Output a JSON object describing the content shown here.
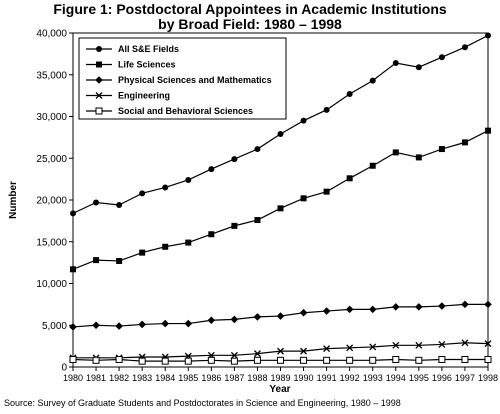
{
  "chart_data": {
    "type": "line",
    "title_line1": "Figure 1: Postdoctoral Appointees in Academic Institutions",
    "title_line2": "by Broad Field: 1980 – 1998",
    "xlabel": "Year",
    "ylabel": "Number",
    "ylim": [
      0,
      40000
    ],
    "yticks": [
      0,
      5000,
      10000,
      15000,
      20000,
      25000,
      30000,
      35000,
      40000
    ],
    "ytick_labels": [
      "0",
      "5,000",
      "10,000",
      "15,000",
      "20,000",
      "25,000",
      "30,000",
      "35,000",
      "40,000"
    ],
    "x": [
      "1980",
      "1981",
      "1982",
      "1983",
      "1984",
      "1985",
      "1986",
      "1987",
      "1988",
      "1989",
      "1990",
      "1991",
      "1992",
      "1993",
      "1994",
      "1995",
      "1996",
      "1997",
      "1998"
    ],
    "legend_position": "top-left",
    "grid": false,
    "series": [
      {
        "name": "All S&E Fields",
        "marker": "circle",
        "values": [
          18400,
          19700,
          19400,
          20800,
          21500,
          22400,
          23700,
          24900,
          26100,
          27900,
          29500,
          30800,
          32700,
          34300,
          36400,
          35900,
          37100,
          38300,
          39700
        ]
      },
      {
        "name": "Life Sciences",
        "marker": "square",
        "values": [
          11700,
          12800,
          12700,
          13700,
          14400,
          14900,
          15900,
          16900,
          17600,
          19000,
          20200,
          21000,
          22600,
          24100,
          25700,
          25100,
          26100,
          26900,
          28300
        ]
      },
      {
        "name": "Physical Sciences and Mathematics",
        "marker": "diamond",
        "values": [
          4800,
          5000,
          4900,
          5100,
          5200,
          5200,
          5600,
          5700,
          6000,
          6100,
          6500,
          6700,
          6900,
          6900,
          7200,
          7200,
          7300,
          7500,
          7500
        ]
      },
      {
        "name": "Engineering",
        "marker": "x",
        "values": [
          1100,
          1100,
          1100,
          1200,
          1200,
          1300,
          1400,
          1400,
          1600,
          1900,
          1900,
          2200,
          2300,
          2400,
          2600,
          2600,
          2700,
          2900,
          2800
        ]
      },
      {
        "name": "Social and Behavioral Sciences",
        "marker": "open-square",
        "values": [
          900,
          800,
          900,
          700,
          700,
          700,
          800,
          700,
          800,
          800,
          800,
          800,
          800,
          800,
          900,
          800,
          900,
          900,
          900
        ]
      }
    ],
    "source": "Source: Survey of Graduate Students and Postdoctorates in Science and Engineering, 1980 – 1998"
  }
}
